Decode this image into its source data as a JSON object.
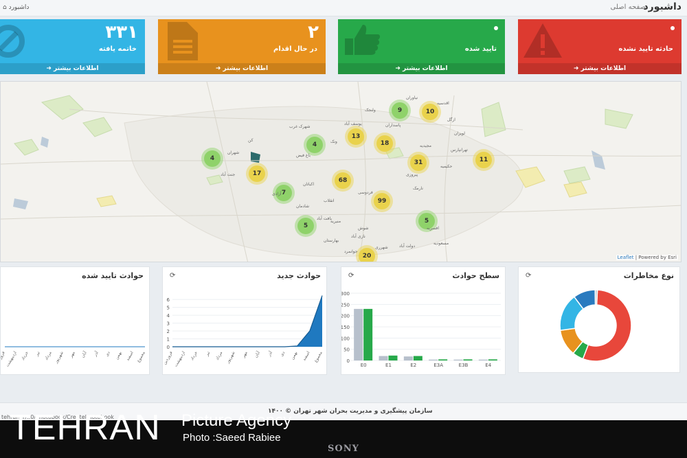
{
  "header": {
    "title": "داشبورد",
    "subtitle": "صفحه اصلی",
    "breadcrumb": "داشبورد"
  },
  "stats": [
    {
      "id": "closed",
      "count": "۳۳۱",
      "label": "خاتمه یافته",
      "more": "اطلاعات بیشتر",
      "color": "#33b5e5",
      "icon": "check-circle-icon"
    },
    {
      "id": "in-progress",
      "count": "۲",
      "label": "در حال اقدام",
      "more": "اطلاعات بیشتر",
      "color": "#e8921e",
      "icon": "document-icon"
    },
    {
      "id": "confirmed",
      "count": "۰",
      "label": "تایید شده",
      "more": "اطلاعات بیشتر",
      "color": "#27a94a",
      "icon": "thumbs-up-icon"
    },
    {
      "id": "unconfirmed",
      "count": "۰",
      "label": "حادثه تایید نشده",
      "more": "اطلاعات بیشتر",
      "color": "#dd3a30",
      "icon": "warning-icon"
    }
  ],
  "map": {
    "clusters": [
      {
        "value": "9",
        "size": "small"
      },
      {
        "value": "10",
        "size": "medium"
      },
      {
        "value": "13",
        "size": "medium"
      },
      {
        "value": "18",
        "size": "medium"
      },
      {
        "value": "4",
        "size": "small"
      },
      {
        "value": "4",
        "size": "small"
      },
      {
        "value": "31",
        "size": "medium"
      },
      {
        "value": "11",
        "size": "medium"
      },
      {
        "value": "17",
        "size": "medium"
      },
      {
        "value": "68",
        "size": "medium"
      },
      {
        "value": "7",
        "size": "small"
      },
      {
        "value": "99",
        "size": "medium"
      },
      {
        "value": "5",
        "size": "small"
      },
      {
        "value": "5",
        "size": "small"
      },
      {
        "value": "20",
        "size": "medium"
      }
    ],
    "places": [
      "ولنجک",
      "نیاوران",
      "اقدسیه",
      "ازگل",
      "لویزان",
      "تهرانپارس",
      "مجیدیه",
      "حکیمیه",
      "پاسداران",
      "شهرک غرب",
      "ونک",
      "یوسف آباد",
      "کن",
      "باغ فیض",
      "جنت آباد",
      "آزادی",
      "شادمان",
      "انقلاب",
      "نارمک",
      "پیروزی",
      "شهران",
      "اکباتان",
      "فردوسی",
      "شوش",
      "شهرری",
      "بهارستان",
      "منیریه",
      "یافت آباد",
      "دولت آباد",
      "مسعودیه",
      "جوانمرد",
      "نازی آباد",
      "افسریه"
    ],
    "attribution_link": "Leaflet",
    "attribution_text": "| Powered by Esri"
  },
  "panels": {
    "hazard": {
      "title": "نوع مخاطرات"
    },
    "level": {
      "title": "سطح حوادث"
    },
    "new": {
      "title": "حوادث جدید"
    },
    "confirmed": {
      "title": "حوادث تایید شده"
    }
  },
  "chart_data": [
    {
      "type": "pie",
      "title": "نوع مخاطرات",
      "slices": [
        {
          "value": 55,
          "color": "#e8473b"
        },
        {
          "value": 5,
          "color": "#27a94a"
        },
        {
          "value": 12,
          "color": "#e8921e"
        },
        {
          "value": 17,
          "color": "#33b5e5"
        },
        {
          "value": 10,
          "color": "#2a7bbf"
        },
        {
          "value": 1,
          "color": "#bfc8d0"
        }
      ]
    },
    {
      "type": "bar",
      "title": "سطح حوادث",
      "categories": [
        "E0",
        "E1",
        "E2",
        "E3A",
        "E3B",
        "E4"
      ],
      "series": [
        {
          "values": [
            230,
            20,
            18,
            4,
            4,
            4
          ],
          "color": "#b7c0cc"
        },
        {
          "values": [
            230,
            22,
            20,
            5,
            5,
            5
          ],
          "color": "#27a94a"
        }
      ],
      "yticks": [
        "0",
        "50",
        "100",
        "150",
        "200",
        "250",
        "300"
      ],
      "ylim": [
        0,
        300
      ]
    },
    {
      "type": "area",
      "title": "حوادث جدید",
      "categories": [
        "فروردین",
        "اردیبهشت",
        "خرداد",
        "تیر",
        "مرداد",
        "شهریور",
        "مهر",
        "آبان",
        "آذر",
        "دی",
        "بهمن",
        "اسفند",
        "مجموع"
      ],
      "values": [
        0,
        0,
        0,
        0,
        0,
        0,
        0,
        0,
        0,
        0,
        0.1,
        2,
        6.5
      ],
      "yticks": [
        "0",
        "1",
        "2",
        "3",
        "4",
        "5",
        "6"
      ],
      "ylim": [
        0,
        6.8
      ]
    },
    {
      "type": "area",
      "title": "حوادث تایید شده",
      "categories": [
        "فروردین",
        "اردیبهشت",
        "خرداد",
        "تیر",
        "مرداد",
        "شهریور",
        "مهر",
        "آبان",
        "آذر",
        "دی",
        "بهمن",
        "اسفند",
        "مجموع"
      ],
      "values": [
        0,
        0,
        0,
        0,
        0,
        0,
        0,
        0,
        0,
        0,
        0,
        0,
        0
      ]
    }
  ],
  "footer": {
    "text": "سازمان پیشگیری و مدیریت بحران شهر تهران © ۱۴۰۰",
    "url": "tehran.ir/..0/Photobook/CreatePhotobook"
  },
  "watermark": {
    "brand": "TEHRAN",
    "agency": "Picture Agency",
    "credit": "Photo :Saeed Rabiee"
  },
  "bezel": {
    "brand": "SONY"
  }
}
